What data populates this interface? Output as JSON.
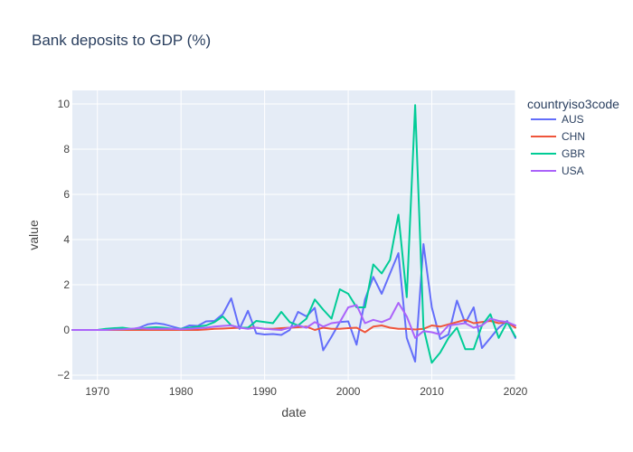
{
  "chart_data": {
    "type": "line",
    "title": "Bank deposits to GDP (%)",
    "xlabel": "date",
    "ylabel": "value",
    "xlim": [
      1967,
      2020
    ],
    "ylim": [
      -2.2,
      10.6
    ],
    "xticks": [
      1970,
      1980,
      1990,
      2000,
      2010,
      2020
    ],
    "yticks": [
      -2,
      0,
      2,
      4,
      6,
      8,
      10
    ],
    "ytick_labels": [
      "−2",
      "0",
      "2",
      "4",
      "6",
      "8",
      "10"
    ],
    "grid": true,
    "legend_title": "countryiso3code",
    "legend_position": "top-right",
    "series": [
      {
        "name": "AUS",
        "color": "#636efa",
        "x": [
          1967,
          1968,
          1969,
          1970,
          1971,
          1972,
          1973,
          1974,
          1975,
          1976,
          1977,
          1978,
          1979,
          1980,
          1981,
          1982,
          1983,
          1984,
          1985,
          1986,
          1987,
          1988,
          1989,
          1990,
          1991,
          1992,
          1993,
          1994,
          1995,
          1996,
          1997,
          1998,
          1999,
          2000,
          2001,
          2002,
          2003,
          2004,
          2005,
          2006,
          2007,
          2008,
          2009,
          2010,
          2011,
          2012,
          2013,
          2014,
          2015,
          2016,
          2017,
          2018,
          2019,
          2020
        ],
        "y": [
          0,
          0,
          0,
          0,
          0.02,
          0.05,
          0.05,
          0.03,
          0.1,
          0.25,
          0.3,
          0.25,
          0.15,
          0.05,
          0.2,
          0.18,
          0.38,
          0.4,
          0.7,
          1.4,
          0.05,
          0.85,
          -0.15,
          -0.2,
          -0.18,
          -0.22,
          0.0,
          0.8,
          0.6,
          0.98,
          -0.9,
          -0.3,
          0.35,
          0.38,
          -0.65,
          1.35,
          2.35,
          1.6,
          2.5,
          3.4,
          -0.35,
          -1.4,
          3.8,
          1.0,
          -0.4,
          -0.2,
          1.3,
          0.3,
          1.0,
          -0.8,
          -0.35,
          0.1,
          0.4,
          -0.35
        ]
      },
      {
        "name": "CHN",
        "color": "#EF553B",
        "x": [
          1967,
          1968,
          1969,
          1970,
          1971,
          1972,
          1973,
          1974,
          1975,
          1976,
          1977,
          1978,
          1979,
          1980,
          1981,
          1982,
          1983,
          1984,
          1985,
          1986,
          1987,
          1988,
          1989,
          1990,
          1991,
          1992,
          1993,
          1994,
          1995,
          1996,
          1997,
          1998,
          1999,
          2000,
          2001,
          2002,
          2003,
          2004,
          2005,
          2006,
          2007,
          2008,
          2009,
          2010,
          2011,
          2012,
          2013,
          2014,
          2015,
          2016,
          2017,
          2018,
          2019,
          2020
        ],
        "y": [
          0,
          0,
          0,
          0,
          0,
          0,
          0,
          0,
          0,
          0,
          0,
          0,
          0,
          0,
          0,
          0,
          0.02,
          0.05,
          0.06,
          0.08,
          0.1,
          0.1,
          0.1,
          0.05,
          0.05,
          0.08,
          0.1,
          0.12,
          0.15,
          0.0,
          0.1,
          0.05,
          0.05,
          0.08,
          0.1,
          -0.1,
          0.15,
          0.2,
          0.1,
          0.05,
          0.05,
          0.02,
          0.05,
          0.2,
          0.15,
          0.25,
          0.35,
          0.45,
          0.3,
          0.35,
          0.4,
          0.3,
          0.35,
          0.1
        ]
      },
      {
        "name": "GBR",
        "color": "#00cc96",
        "x": [
          1967,
          1968,
          1969,
          1970,
          1971,
          1972,
          1973,
          1974,
          1975,
          1976,
          1977,
          1978,
          1979,
          1980,
          1981,
          1982,
          1983,
          1984,
          1985,
          1986,
          1987,
          1988,
          1989,
          1990,
          1991,
          1992,
          1993,
          1994,
          1995,
          1996,
          1997,
          1998,
          1999,
          2000,
          2001,
          2002,
          2003,
          2004,
          2005,
          2006,
          2007,
          2008,
          2009,
          2010,
          2011,
          2012,
          2013,
          2014,
          2015,
          2016,
          2017,
          2018,
          2019,
          2020
        ],
        "y": [
          0,
          0,
          0,
          0,
          0.05,
          0.08,
          0.1,
          0.05,
          0.05,
          0.1,
          0.12,
          0.1,
          0.05,
          0.05,
          0.1,
          0.15,
          0.2,
          0.35,
          0.6,
          0.2,
          0.1,
          0.1,
          0.4,
          0.35,
          0.3,
          0.8,
          0.35,
          0.2,
          0.5,
          1.35,
          0.9,
          0.5,
          1.8,
          1.6,
          1.0,
          1.0,
          2.9,
          2.5,
          3.1,
          5.1,
          1.45,
          9.95,
          0.1,
          -1.45,
          -1.0,
          -0.35,
          0.1,
          -0.85,
          -0.85,
          0.2,
          0.7,
          -0.35,
          0.35,
          -0.3
        ]
      },
      {
        "name": "USA",
        "color": "#ab63fa",
        "x": [
          1967,
          1968,
          1969,
          1970,
          1971,
          1972,
          1973,
          1974,
          1975,
          1976,
          1977,
          1978,
          1979,
          1980,
          1981,
          1982,
          1983,
          1984,
          1985,
          1986,
          1987,
          1988,
          1989,
          1990,
          1991,
          1992,
          1993,
          1994,
          1995,
          1996,
          1997,
          1998,
          1999,
          2000,
          2001,
          2002,
          2003,
          2004,
          2005,
          2006,
          2007,
          2008,
          2009,
          2010,
          2011,
          2012,
          2013,
          2014,
          2015,
          2016,
          2017,
          2018,
          2019,
          2020
        ],
        "y": [
          0,
          0,
          0,
          0,
          0,
          0.02,
          0.03,
          0.05,
          0.08,
          0.05,
          0.05,
          0.05,
          0.05,
          0.03,
          0.05,
          0.08,
          0.1,
          0.15,
          0.18,
          0.2,
          0.1,
          0.05,
          0.1,
          0.05,
          0.02,
          0.0,
          0.1,
          0.2,
          0.1,
          0.35,
          0.15,
          0.3,
          0.35,
          1.0,
          1.1,
          0.3,
          0.45,
          0.35,
          0.5,
          1.2,
          0.6,
          -0.35,
          -0.05,
          -0.1,
          -0.2,
          0.2,
          0.25,
          0.3,
          0.1,
          0.2,
          0.5,
          0.4,
          0.35,
          0.2
        ]
      }
    ]
  }
}
